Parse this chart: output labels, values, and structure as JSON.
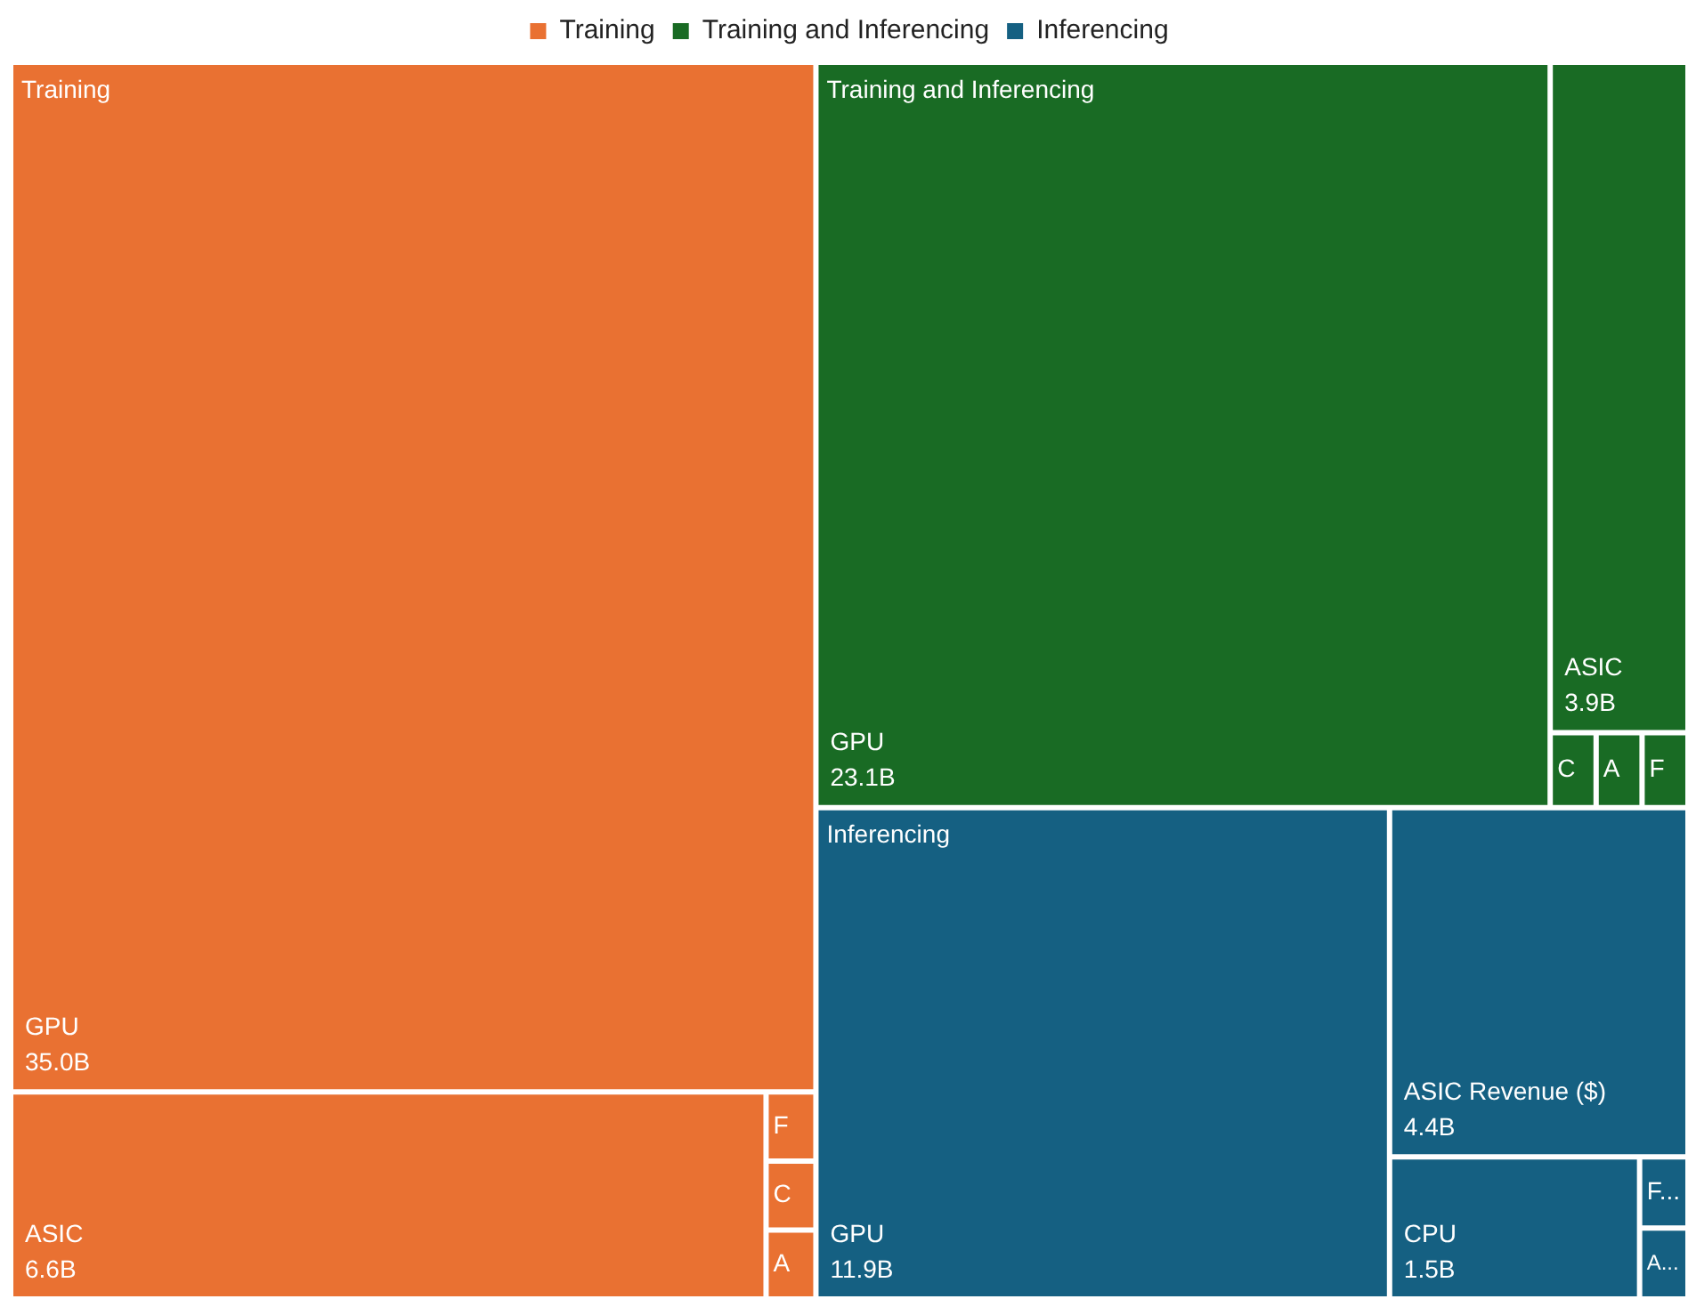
{
  "chart_data": {
    "type": "other",
    "legend": "top",
    "categories": [
      "GPU",
      "ASIC",
      "F",
      "C",
      "A",
      "GPU",
      "ASIC",
      "C",
      "A",
      "F",
      "GPU",
      "ASIC Revenue ($)",
      "CPU",
      "F...",
      "A..."
    ],
    "series": [
      {
        "name": "Training",
        "color": "#e97132",
        "values": [
          35.0,
          6.6,
          null,
          null,
          null,
          null,
          null,
          null,
          null,
          null,
          null,
          null,
          null,
          null,
          null
        ],
        "value_labels": [
          "35.0B",
          "6.6B",
          null,
          null,
          null,
          null,
          null,
          null,
          null,
          null,
          null,
          null,
          null,
          null,
          null
        ]
      },
      {
        "name": "Training and Inferencing",
        "color": "#196b24",
        "values": [
          null,
          null,
          null,
          null,
          null,
          23.1,
          3.9,
          null,
          null,
          null,
          null,
          null,
          null,
          null,
          null
        ],
        "value_labels": [
          null,
          null,
          null,
          null,
          null,
          "23.1B",
          "3.9B",
          null,
          null,
          null,
          null,
          null,
          null,
          null,
          null
        ]
      },
      {
        "name": "Inferencing",
        "color": "#156082",
        "values": [
          null,
          null,
          null,
          null,
          null,
          null,
          null,
          null,
          null,
          null,
          11.9,
          4.4,
          1.5,
          null,
          null
        ],
        "value_labels": [
          null,
          null,
          null,
          null,
          null,
          null,
          null,
          null,
          null,
          null,
          "11.9B",
          "4.4B",
          "1.5B",
          null,
          null
        ]
      }
    ]
  }
}
